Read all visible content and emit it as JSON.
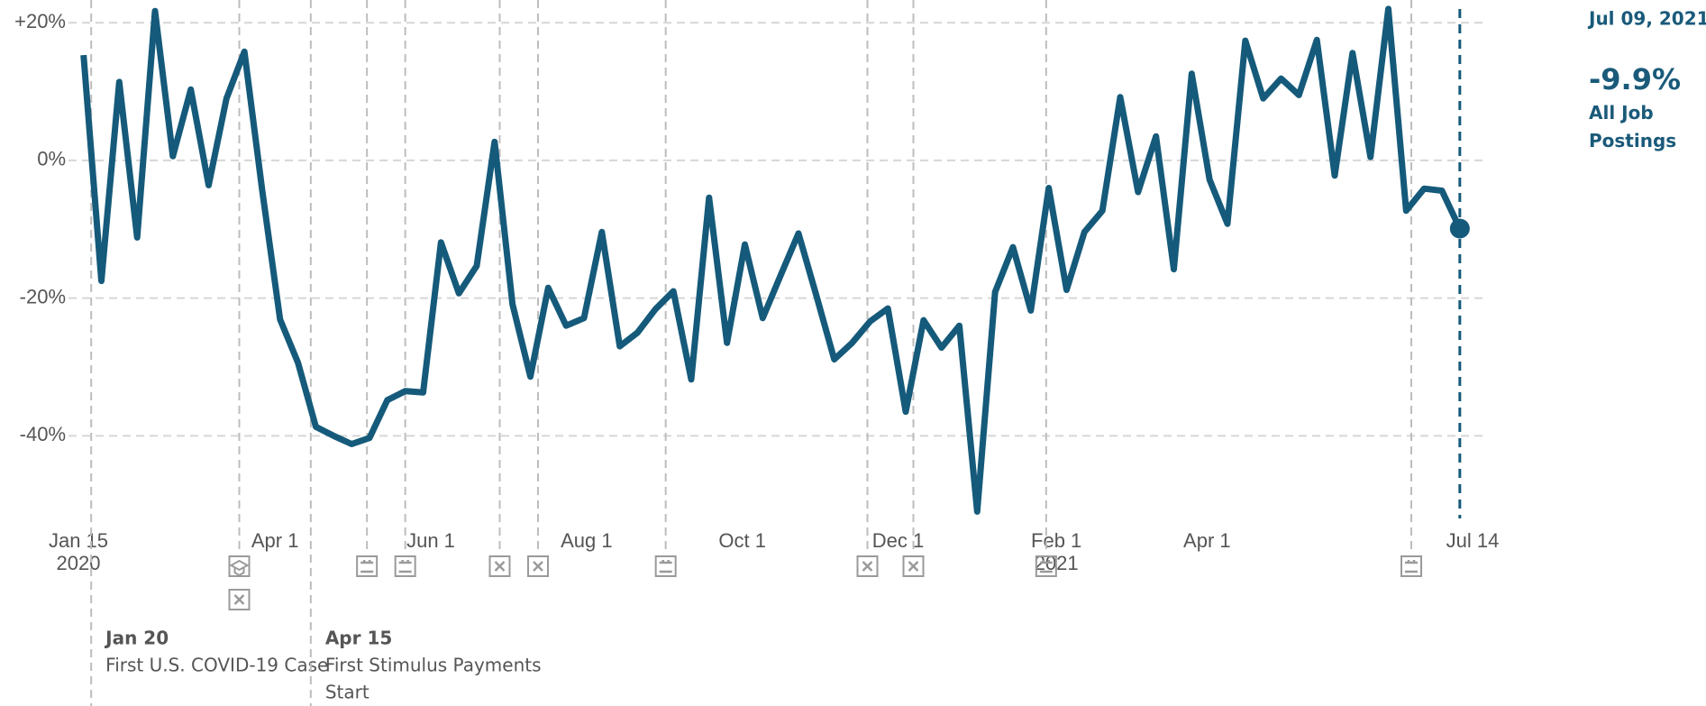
{
  "chart_data": {
    "type": "line",
    "x": [
      "2020-01-17",
      "2020-01-24",
      "2020-01-31",
      "2020-02-07",
      "2020-02-14",
      "2020-02-21",
      "2020-02-28",
      "2020-03-06",
      "2020-03-13",
      "2020-03-20",
      "2020-03-27",
      "2020-04-03",
      "2020-04-10",
      "2020-04-17",
      "2020-04-24",
      "2020-05-01",
      "2020-05-08",
      "2020-05-15",
      "2020-05-22",
      "2020-05-29",
      "2020-06-05",
      "2020-06-12",
      "2020-06-19",
      "2020-06-26",
      "2020-07-03",
      "2020-07-10",
      "2020-07-17",
      "2020-07-24",
      "2020-07-31",
      "2020-08-07",
      "2020-08-14",
      "2020-08-21",
      "2020-08-28",
      "2020-09-04",
      "2020-09-11",
      "2020-09-18",
      "2020-09-25",
      "2020-10-02",
      "2020-10-09",
      "2020-10-16",
      "2020-10-23",
      "2020-10-30",
      "2020-11-06",
      "2020-11-13",
      "2020-11-20",
      "2020-11-27",
      "2020-12-04",
      "2020-12-11",
      "2020-12-18",
      "2020-12-25",
      "2021-01-01",
      "2021-01-08",
      "2021-01-15",
      "2021-01-22",
      "2021-01-29",
      "2021-02-05",
      "2021-02-12",
      "2021-02-19",
      "2021-02-26",
      "2021-03-05",
      "2021-03-12",
      "2021-03-19",
      "2021-03-26",
      "2021-04-02",
      "2021-04-09",
      "2021-04-16",
      "2021-04-23",
      "2021-04-30",
      "2021-05-07",
      "2021-05-14",
      "2021-05-21",
      "2021-05-28",
      "2021-06-04",
      "2021-06-11",
      "2021-06-18",
      "2021-06-25",
      "2021-07-02",
      "2021-07-09"
    ],
    "series": [
      {
        "name": "All Job Postings",
        "color": "#155a7a",
        "values": [
          15.3,
          -17.5,
          11.4,
          -11.2,
          21.7,
          0.6,
          10.3,
          -3.6,
          9,
          15.8,
          -4.4,
          -23.1,
          -29.4,
          -38.7,
          -40,
          -41.2,
          -40.3,
          -34.8,
          -33.5,
          -33.7,
          -11.9,
          -19.3,
          -15.3,
          2.7,
          -20.9,
          -31.4,
          -18.5,
          -24,
          -22.9,
          -10.4,
          -27,
          -25,
          -21.6,
          -19,
          -31.8,
          -5.4,
          -26.5,
          -12.2,
          -22.9,
          -16.7,
          -10.6,
          -19.6,
          -28.9,
          -26.5,
          -23.4,
          -21.5,
          -36.5,
          -23.2,
          -27.2,
          -24,
          -51,
          -19.1,
          -12.6,
          -21.8,
          -4,
          -18.8,
          -10.4,
          -7.3,
          9.2,
          -4.6,
          3.5,
          -15.8,
          12.6,
          -2.8,
          -9.2,
          17.4,
          9,
          11.9,
          9.5,
          17.5,
          -2.2,
          15.6,
          0.5,
          22,
          -7.3,
          -4.1,
          -4.4,
          -9.9
        ]
      }
    ],
    "xlim": [
      "2020-01-15",
      "2021-07-14"
    ],
    "xticks": [
      {
        "value": "2020-01-15",
        "label": "Jan 15",
        "year": "2020"
      },
      {
        "value": "2020-04-01",
        "label": "Apr 1"
      },
      {
        "value": "2020-06-01",
        "label": "Jun 1"
      },
      {
        "value": "2020-08-01",
        "label": "Aug 1"
      },
      {
        "value": "2020-10-01",
        "label": "Oct 1"
      },
      {
        "value": "2020-12-01",
        "label": "Dec 1"
      },
      {
        "value": "2021-02-01",
        "label": "Feb 1",
        "year": "2021"
      },
      {
        "value": "2021-04-01",
        "label": "Apr 1"
      },
      {
        "value": "2021-07-14",
        "label": "Jul 14"
      }
    ],
    "ylim": [
      -52,
      23.3
    ],
    "yticks": [
      {
        "value": 20,
        "label": "+20%"
      },
      {
        "value": 0,
        "label": "0%"
      },
      {
        "value": -20,
        "label": "-20%"
      },
      {
        "value": -40,
        "label": "-40%"
      }
    ],
    "grid": true,
    "events": [
      {
        "date": "2020-01-20",
        "title": "Jan 20",
        "lines": [
          "First U.S. COVID-19 Case"
        ]
      },
      {
        "date": "2020-04-15",
        "title": "Apr 15",
        "lines": [
          "First Stimulus Payments",
          "Start"
        ]
      }
    ],
    "event_markers": [
      {
        "date": "2020-03-18",
        "icons": [
          "school",
          "closed"
        ]
      },
      {
        "date": "2020-05-07",
        "icons": [
          "store"
        ]
      },
      {
        "date": "2020-05-22",
        "icons": [
          "store"
        ]
      },
      {
        "date": "2020-06-28",
        "icons": [
          "closed"
        ]
      },
      {
        "date": "2020-07-13",
        "icons": [
          "closed"
        ]
      },
      {
        "date": "2020-09-01",
        "icons": [
          "store"
        ]
      },
      {
        "date": "2020-11-19",
        "icons": [
          "closed"
        ]
      },
      {
        "date": "2020-12-07",
        "icons": [
          "closed"
        ]
      },
      {
        "date": "2021-01-28",
        "icons": [
          "store"
        ]
      },
      {
        "date": "2021-06-20",
        "icons": [
          "store"
        ]
      }
    ],
    "readout": {
      "date": "Jul 09, 2021",
      "value": "-9.9%"
    }
  }
}
